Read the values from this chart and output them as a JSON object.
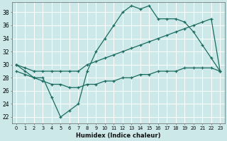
{
  "xlabel": "Humidex (Indice chaleur)",
  "ylabel": "",
  "bg_color": "#cce8e8",
  "line_color": "#1a6b60",
  "grid_color": "#b0d4d4",
  "xlim": [
    -0.5,
    23.5
  ],
  "ylim": [
    21,
    39.5
  ],
  "yticks": [
    22,
    24,
    26,
    28,
    30,
    32,
    34,
    36,
    38
  ],
  "xticks": [
    0,
    1,
    2,
    3,
    4,
    5,
    6,
    7,
    8,
    9,
    10,
    11,
    12,
    13,
    14,
    15,
    16,
    17,
    18,
    19,
    20,
    21,
    22,
    23
  ],
  "series1_x": [
    0,
    1,
    2,
    3,
    4,
    5,
    6,
    7,
    8,
    9,
    10,
    11,
    12,
    13,
    14,
    15,
    16,
    17,
    18,
    19,
    20,
    21,
    22,
    23
  ],
  "series1_y": [
    30,
    29,
    28,
    28,
    25,
    22,
    23,
    24,
    29,
    32,
    34,
    36,
    38,
    39,
    38.5,
    39,
    37,
    37,
    37,
    36.5,
    35,
    33,
    31,
    29
  ],
  "series2_x": [
    0,
    1,
    2,
    3,
    4,
    5,
    6,
    7,
    8,
    9,
    10,
    11,
    12,
    13,
    14,
    15,
    16,
    17,
    18,
    19,
    20,
    21,
    22,
    23
  ],
  "series2_y": [
    30,
    29.5,
    29,
    29,
    29,
    29,
    29,
    29,
    30,
    30.5,
    31,
    31.5,
    32,
    32.5,
    33,
    33.5,
    34,
    34.5,
    35,
    35.5,
    36,
    36.5,
    37,
    29
  ],
  "series3_x": [
    0,
    1,
    2,
    3,
    4,
    5,
    6,
    7,
    8,
    9,
    10,
    11,
    12,
    13,
    14,
    15,
    16,
    17,
    18,
    19,
    20,
    21,
    22,
    23
  ],
  "series3_y": [
    29,
    28.5,
    28,
    27.5,
    27,
    27,
    26.5,
    26.5,
    27,
    27,
    27.5,
    27.5,
    28,
    28,
    28.5,
    28.5,
    29,
    29,
    29,
    29.5,
    29.5,
    29.5,
    29.5,
    29
  ]
}
